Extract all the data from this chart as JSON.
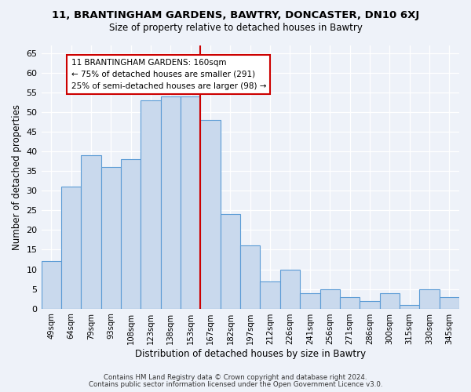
{
  "title": "11, BRANTINGHAM GARDENS, BAWTRY, DONCASTER, DN10 6XJ",
  "subtitle": "Size of property relative to detached houses in Bawtry",
  "xlabel": "Distribution of detached houses by size in Bawtry",
  "ylabel": "Number of detached properties",
  "bar_labels": [
    "49sqm",
    "64sqm",
    "79sqm",
    "93sqm",
    "108sqm",
    "123sqm",
    "138sqm",
    "153sqm",
    "167sqm",
    "182sqm",
    "197sqm",
    "212sqm",
    "226sqm",
    "241sqm",
    "256sqm",
    "271sqm",
    "286sqm",
    "300sqm",
    "315sqm",
    "330sqm",
    "345sqm"
  ],
  "bar_values": [
    12,
    31,
    39,
    36,
    38,
    53,
    54,
    54,
    48,
    24,
    16,
    7,
    10,
    4,
    5,
    3,
    2,
    4,
    1,
    5,
    3
  ],
  "bar_color": "#c9d9ed",
  "bar_edge_color": "#5b9bd5",
  "vline_color": "#cc0000",
  "annotation_line1": "11 BRANTINGHAM GARDENS: 160sqm",
  "annotation_line2": "← 75% of detached houses are smaller (291)",
  "annotation_line3": "25% of semi-detached houses are larger (98) →",
  "annotation_box_edge": "#cc0000",
  "ylim": [
    0,
    67
  ],
  "yticks": [
    0,
    5,
    10,
    15,
    20,
    25,
    30,
    35,
    40,
    45,
    50,
    55,
    60,
    65
  ],
  "footer_line1": "Contains HM Land Registry data © Crown copyright and database right 2024.",
  "footer_line2": "Contains public sector information licensed under the Open Government Licence v3.0.",
  "bg_color": "#eef2f9"
}
